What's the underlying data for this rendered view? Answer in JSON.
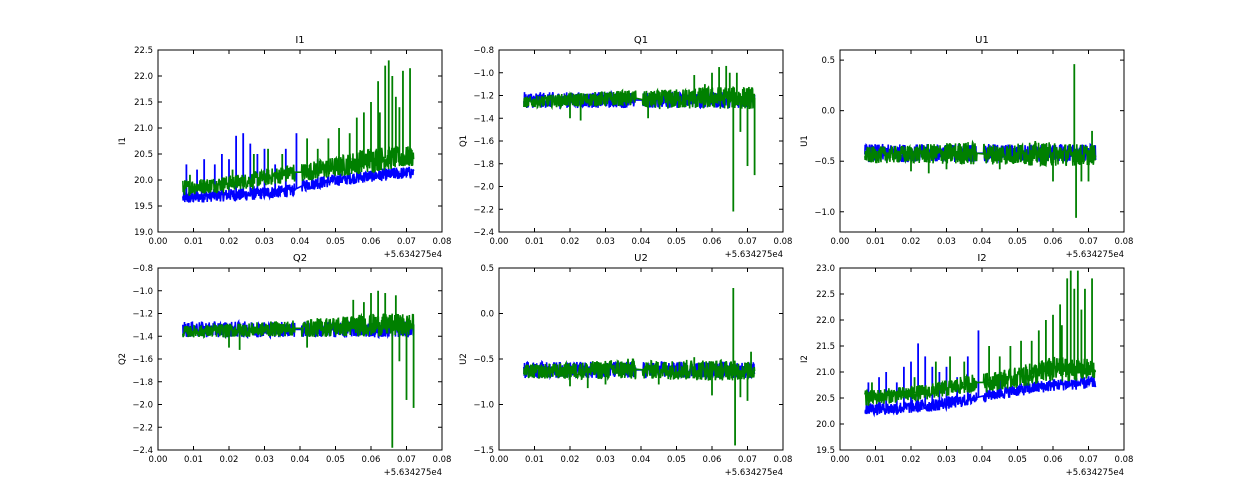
{
  "chart_data": [
    {
      "type": "line",
      "title": "I1",
      "ylabel": "I1",
      "xlabel": "",
      "x_offset_label": "+5.634275e4",
      "xlim": [
        0.0,
        0.08
      ],
      "ylim": [
        19.0,
        22.5
      ],
      "xticks": [
        "0.00",
        "0.01",
        "0.02",
        "0.03",
        "0.04",
        "0.05",
        "0.06",
        "0.07",
        "0.08"
      ],
      "yticks": [
        "19.0",
        "19.5",
        "20.0",
        "20.5",
        "21.0",
        "21.5",
        "22.0",
        "22.5"
      ],
      "series": [
        {
          "color": "#0000ff",
          "x": [
            0.007,
            0.015,
            0.025,
            0.035,
            0.038,
            0.041,
            0.05,
            0.06,
            0.072
          ],
          "center": [
            19.65,
            19.7,
            19.72,
            19.78,
            19.8,
            19.9,
            20.0,
            20.08,
            20.15
          ],
          "spread": [
            0.12,
            0.12,
            0.12,
            0.12,
            0.12,
            0.12,
            0.12,
            0.12,
            0.12
          ],
          "spikes": [
            [
              0.008,
              20.3
            ],
            [
              0.011,
              20.2
            ],
            [
              0.013,
              20.4
            ],
            [
              0.016,
              20.3
            ],
            [
              0.018,
              20.5
            ],
            [
              0.02,
              20.4
            ],
            [
              0.022,
              20.85
            ],
            [
              0.024,
              20.9
            ],
            [
              0.026,
              20.7
            ],
            [
              0.028,
              20.5
            ],
            [
              0.03,
              20.6
            ],
            [
              0.033,
              20.3
            ],
            [
              0.036,
              20.6
            ],
            [
              0.039,
              20.9
            ],
            [
              0.045,
              20.4
            ]
          ]
        },
        {
          "color": "#008000",
          "x": [
            0.007,
            0.015,
            0.025,
            0.035,
            0.038,
            0.041,
            0.05,
            0.06,
            0.072
          ],
          "center": [
            19.85,
            19.9,
            19.98,
            20.1,
            20.15,
            20.15,
            20.25,
            20.4,
            20.45
          ],
          "spread": [
            0.15,
            0.15,
            0.15,
            0.17,
            0.18,
            0.18,
            0.2,
            0.25,
            0.2
          ],
          "spikes": [
            [
              0.009,
              20.1
            ],
            [
              0.021,
              20.2
            ],
            [
              0.027,
              20.5
            ],
            [
              0.031,
              20.6
            ],
            [
              0.035,
              20.5
            ],
            [
              0.042,
              20.8
            ],
            [
              0.045,
              20.6
            ],
            [
              0.048,
              20.8
            ],
            [
              0.051,
              21.0
            ],
            [
              0.054,
              20.9
            ],
            [
              0.056,
              21.2
            ],
            [
              0.058,
              21.3
            ],
            [
              0.06,
              21.5
            ],
            [
              0.062,
              21.9
            ],
            [
              0.0625,
              21.3
            ],
            [
              0.064,
              22.2
            ],
            [
              0.065,
              22.3
            ],
            [
              0.066,
              22.0
            ],
            [
              0.067,
              21.6
            ],
            [
              0.068,
              21.4
            ],
            [
              0.069,
              22.1
            ],
            [
              0.071,
              22.15
            ]
          ]
        }
      ]
    },
    {
      "type": "line",
      "title": "Q1",
      "ylabel": "Q1",
      "xlabel": "",
      "x_offset_label": "+5.634275e4",
      "xlim": [
        0.0,
        0.08
      ],
      "ylim": [
        -2.4,
        -0.8
      ],
      "xticks": [
        "0.00",
        "0.01",
        "0.02",
        "0.03",
        "0.04",
        "0.05",
        "0.06",
        "0.07",
        "0.08"
      ],
      "yticks": [
        "−2.4",
        "−2.2",
        "−2.0",
        "−1.8",
        "−1.6",
        "−1.4",
        "−1.2",
        "−1.0",
        "−0.8"
      ],
      "series": [
        {
          "color": "#0000ff",
          "x": [
            0.007,
            0.02,
            0.038,
            0.041,
            0.06,
            0.072
          ],
          "center": [
            -1.24,
            -1.24,
            -1.24,
            -1.24,
            -1.24,
            -1.24
          ],
          "spread": [
            0.07,
            0.07,
            0.07,
            0.07,
            0.07,
            0.07
          ],
          "spikes": []
        },
        {
          "color": "#008000",
          "x": [
            0.007,
            0.02,
            0.038,
            0.041,
            0.06,
            0.072
          ],
          "center": [
            -1.26,
            -1.24,
            -1.22,
            -1.24,
            -1.22,
            -1.22
          ],
          "spread": [
            0.05,
            0.06,
            0.07,
            0.08,
            0.1,
            0.1
          ],
          "spikes": [
            [
              0.02,
              -1.4
            ],
            [
              0.023,
              -1.42
            ],
            [
              0.042,
              -1.4
            ],
            [
              0.055,
              -1.02
            ],
            [
              0.058,
              -1.1
            ],
            [
              0.06,
              -1.0
            ],
            [
              0.062,
              -0.95
            ],
            [
              0.064,
              -0.94
            ],
            [
              0.065,
              -1.0
            ],
            [
              0.066,
              -2.22
            ],
            [
              0.068,
              -1.52
            ],
            [
              0.069,
              -1.3
            ],
            [
              0.07,
              -1.82
            ],
            [
              0.072,
              -1.9
            ],
            [
              0.067,
              -1.0
            ]
          ]
        }
      ]
    },
    {
      "type": "line",
      "title": "U1",
      "ylabel": "U1",
      "xlabel": "",
      "x_offset_label": "+5.634275e4",
      "xlim": [
        0.0,
        0.08
      ],
      "ylim": [
        -1.2,
        0.6
      ],
      "xticks": [
        "0.00",
        "0.01",
        "0.02",
        "0.03",
        "0.04",
        "0.05",
        "0.06",
        "0.07",
        "0.08"
      ],
      "yticks": [
        "−1.0",
        "−0.5",
        "0.0",
        "0.5"
      ],
      "ytick_values": [
        -1.0,
        -0.5,
        0.0,
        0.5
      ],
      "series": [
        {
          "color": "#0000ff",
          "x": [
            0.007,
            0.02,
            0.038,
            0.041,
            0.06,
            0.072
          ],
          "center": [
            -0.42,
            -0.42,
            -0.42,
            -0.42,
            -0.42,
            -0.42
          ],
          "spread": [
            0.09,
            0.09,
            0.09,
            0.09,
            0.09,
            0.09
          ],
          "spikes": []
        },
        {
          "color": "#008000",
          "x": [
            0.007,
            0.02,
            0.038,
            0.041,
            0.06,
            0.072
          ],
          "center": [
            -0.44,
            -0.43,
            -0.42,
            -0.43,
            -0.43,
            -0.44
          ],
          "spread": [
            0.08,
            0.09,
            0.12,
            0.1,
            0.12,
            0.1
          ],
          "spikes": [
            [
              0.02,
              -0.6
            ],
            [
              0.025,
              -0.62
            ],
            [
              0.03,
              -0.58
            ],
            [
              0.045,
              -0.58
            ],
            [
              0.055,
              -0.3
            ],
            [
              0.06,
              -0.7
            ],
            [
              0.066,
              0.46
            ],
            [
              0.0665,
              -1.06
            ],
            [
              0.068,
              -0.7
            ],
            [
              0.07,
              -0.7
            ],
            [
              0.071,
              -0.2
            ]
          ]
        }
      ]
    },
    {
      "type": "line",
      "title": "Q2",
      "ylabel": "Q2",
      "xlabel": "",
      "x_offset_label": "+5.634275e4",
      "xlim": [
        0.0,
        0.08
      ],
      "ylim": [
        -2.4,
        -0.8
      ],
      "xticks": [
        "0.00",
        "0.01",
        "0.02",
        "0.03",
        "0.04",
        "0.05",
        "0.06",
        "0.07",
        "0.08"
      ],
      "yticks": [
        "−2.4",
        "−2.2",
        "−2.0",
        "−1.8",
        "−1.6",
        "−1.4",
        "−1.2",
        "−1.0",
        "−0.8"
      ],
      "series": [
        {
          "color": "#0000ff",
          "x": [
            0.007,
            0.02,
            0.038,
            0.041,
            0.06,
            0.072
          ],
          "center": [
            -1.34,
            -1.34,
            -1.34,
            -1.34,
            -1.34,
            -1.34
          ],
          "spread": [
            0.07,
            0.07,
            0.07,
            0.07,
            0.07,
            0.07
          ],
          "spikes": []
        },
        {
          "color": "#008000",
          "x": [
            0.007,
            0.02,
            0.038,
            0.041,
            0.06,
            0.072
          ],
          "center": [
            -1.36,
            -1.35,
            -1.33,
            -1.33,
            -1.3,
            -1.3
          ],
          "spread": [
            0.05,
            0.06,
            0.07,
            0.08,
            0.1,
            0.1
          ],
          "spikes": [
            [
              0.02,
              -1.5
            ],
            [
              0.023,
              -1.52
            ],
            [
              0.042,
              -1.5
            ],
            [
              0.055,
              -1.08
            ],
            [
              0.058,
              -1.1
            ],
            [
              0.06,
              -1.02
            ],
            [
              0.062,
              -1.0
            ],
            [
              0.064,
              -1.02
            ],
            [
              0.066,
              -2.38
            ],
            [
              0.068,
              -1.62
            ],
            [
              0.069,
              -1.4
            ],
            [
              0.07,
              -1.96
            ],
            [
              0.072,
              -2.03
            ],
            [
              0.067,
              -1.04
            ]
          ]
        }
      ]
    },
    {
      "type": "line",
      "title": "U2",
      "ylabel": "U2",
      "xlabel": "",
      "x_offset_label": "+5.634275e4",
      "xlim": [
        0.0,
        0.08
      ],
      "ylim": [
        -1.5,
        0.5
      ],
      "xticks": [
        "0.00",
        "0.01",
        "0.02",
        "0.03",
        "0.04",
        "0.05",
        "0.06",
        "0.07",
        "0.08"
      ],
      "yticks": [
        "−1.5",
        "−1.0",
        "−0.5",
        "0.0",
        "0.5"
      ],
      "series": [
        {
          "color": "#0000ff",
          "x": [
            0.007,
            0.02,
            0.038,
            0.041,
            0.06,
            0.072
          ],
          "center": [
            -0.62,
            -0.62,
            -0.62,
            -0.62,
            -0.62,
            -0.62
          ],
          "spread": [
            0.09,
            0.09,
            0.09,
            0.09,
            0.09,
            0.09
          ],
          "spikes": []
        },
        {
          "color": "#008000",
          "x": [
            0.007,
            0.02,
            0.038,
            0.041,
            0.06,
            0.072
          ],
          "center": [
            -0.64,
            -0.63,
            -0.61,
            -0.62,
            -0.62,
            -0.63
          ],
          "spread": [
            0.08,
            0.09,
            0.12,
            0.1,
            0.12,
            0.1
          ],
          "spikes": [
            [
              0.02,
              -0.8
            ],
            [
              0.025,
              -0.82
            ],
            [
              0.03,
              -0.78
            ],
            [
              0.045,
              -0.78
            ],
            [
              0.055,
              -0.48
            ],
            [
              0.06,
              -0.9
            ],
            [
              0.066,
              0.28
            ],
            [
              0.0665,
              -1.45
            ],
            [
              0.068,
              -0.92
            ],
            [
              0.07,
              -0.96
            ],
            [
              0.071,
              -0.42
            ]
          ]
        }
      ]
    },
    {
      "type": "line",
      "title": "I2",
      "ylabel": "I2",
      "xlabel": "",
      "x_offset_label": "+5.634275e4",
      "xlim": [
        0.0,
        0.08
      ],
      "ylim": [
        19.5,
        23.0
      ],
      "xticks": [
        "0.00",
        "0.01",
        "0.02",
        "0.03",
        "0.04",
        "0.05",
        "0.06",
        "0.07",
        "0.08"
      ],
      "yticks": [
        "19.5",
        "20.0",
        "20.5",
        "21.0",
        "21.5",
        "22.0",
        "22.5",
        "23.0"
      ],
      "series": [
        {
          "color": "#0000ff",
          "x": [
            0.007,
            0.015,
            0.025,
            0.035,
            0.038,
            0.041,
            0.05,
            0.06,
            0.072
          ],
          "center": [
            20.3,
            20.3,
            20.35,
            20.45,
            20.5,
            20.55,
            20.65,
            20.75,
            20.8
          ],
          "spread": [
            0.12,
            0.12,
            0.12,
            0.12,
            0.12,
            0.12,
            0.12,
            0.12,
            0.12
          ],
          "spikes": [
            [
              0.008,
              20.8
            ],
            [
              0.011,
              20.9
            ],
            [
              0.013,
              21.0
            ],
            [
              0.016,
              20.8
            ],
            [
              0.018,
              21.1
            ],
            [
              0.02,
              21.2
            ],
            [
              0.022,
              21.55
            ],
            [
              0.024,
              21.3
            ],
            [
              0.026,
              21.1
            ],
            [
              0.028,
              21.0
            ],
            [
              0.03,
              21.1
            ],
            [
              0.033,
              20.9
            ],
            [
              0.036,
              21.3
            ],
            [
              0.039,
              21.8
            ],
            [
              0.045,
              21.0
            ]
          ]
        },
        {
          "color": "#008000",
          "x": [
            0.007,
            0.015,
            0.025,
            0.035,
            0.038,
            0.041,
            0.05,
            0.06,
            0.072
          ],
          "center": [
            20.5,
            20.55,
            20.62,
            20.75,
            20.8,
            20.8,
            20.9,
            21.05,
            21.05
          ],
          "spread": [
            0.15,
            0.15,
            0.15,
            0.17,
            0.18,
            0.18,
            0.2,
            0.25,
            0.2
          ],
          "spikes": [
            [
              0.009,
              20.8
            ],
            [
              0.021,
              20.9
            ],
            [
              0.027,
              21.2
            ],
            [
              0.031,
              21.3
            ],
            [
              0.035,
              21.2
            ],
            [
              0.042,
              21.5
            ],
            [
              0.045,
              21.3
            ],
            [
              0.048,
              21.5
            ],
            [
              0.051,
              21.6
            ],
            [
              0.054,
              21.6
            ],
            [
              0.056,
              21.8
            ],
            [
              0.058,
              22.0
            ],
            [
              0.06,
              22.1
            ],
            [
              0.062,
              22.3
            ],
            [
              0.0625,
              21.9
            ],
            [
              0.064,
              22.8
            ],
            [
              0.065,
              22.95
            ],
            [
              0.066,
              22.6
            ],
            [
              0.067,
              22.95
            ],
            [
              0.068,
              22.2
            ],
            [
              0.069,
              22.6
            ],
            [
              0.071,
              22.8
            ]
          ]
        }
      ]
    }
  ]
}
